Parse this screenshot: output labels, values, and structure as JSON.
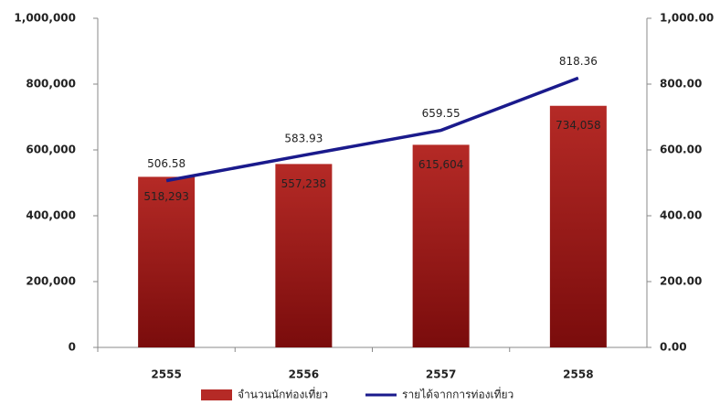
{
  "chart_data": {
    "type": "bar",
    "categories": [
      "2555",
      "2556",
      "2557",
      "2558"
    ],
    "series": [
      {
        "name": "จำนวนนักท่องเที่ยว",
        "type": "bar",
        "color": "#b52a26",
        "values": [
          518293,
          557238,
          615604,
          734058
        ],
        "value_labels": [
          "518,293",
          "557,238",
          "615,604",
          "734,058"
        ]
      },
      {
        "name": "รายได้จากการท่องเที่ยว",
        "type": "line",
        "axis": "y2",
        "color": "#1a1a8c",
        "values": [
          506.58,
          583.93,
          659.55,
          818.36
        ]
      }
    ],
    "ylim": [
      0,
      1000000
    ],
    "yticks": [
      0,
      {
        "value": 200000,
        "label": "200,000"
      },
      {
        "value": 400000,
        "label": "400,000"
      },
      {
        "value": 600000,
        "label": "600,000"
      },
      {
        "value": 800000,
        "label": "800,000"
      },
      {
        "value": 1000000,
        "label": "1,000,000"
      }
    ],
    "y2lim": [
      0,
      1000
    ],
    "y2ticks": [
      {
        "value": 0,
        "label": "0.00"
      },
      {
        "value": 200,
        "label": "200.00"
      },
      {
        "value": 400,
        "label": "400.00"
      },
      {
        "value": 600,
        "label": "600.00"
      },
      {
        "value": 800,
        "label": "800.00"
      },
      {
        "value": 1000,
        "label": "1,000.00"
      }
    ],
    "legend": "bottom"
  }
}
